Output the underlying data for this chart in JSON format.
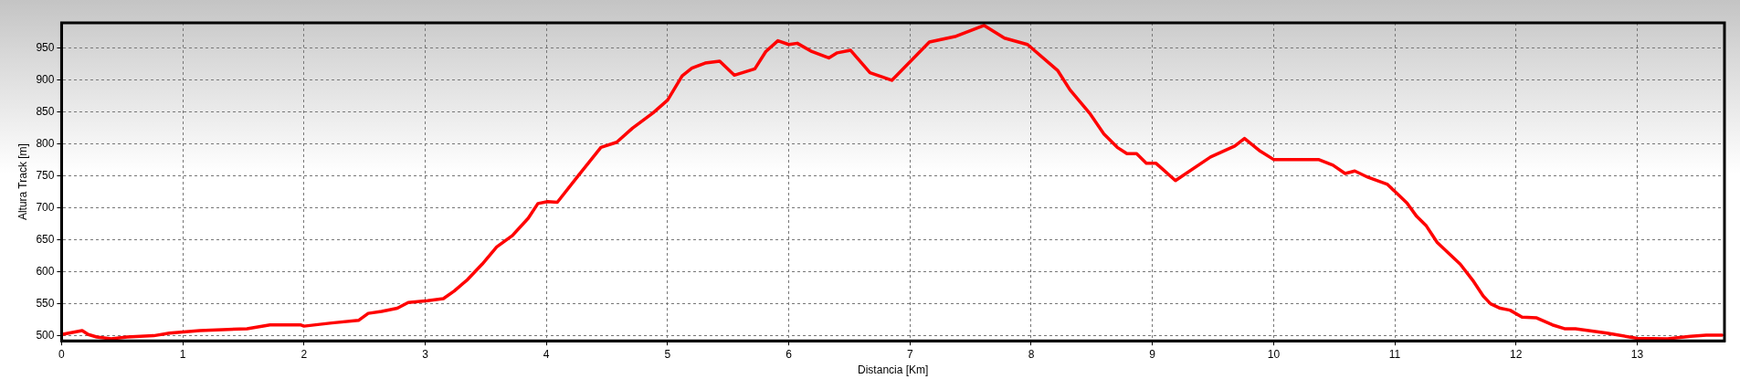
{
  "chart_data": {
    "type": "line",
    "xlabel": "Distancia [Km]",
    "ylabel": "Altura Track [m]",
    "xlim": [
      0,
      13.72
    ],
    "xticks": [
      0,
      1,
      2,
      3,
      4,
      5,
      6,
      7,
      8,
      9,
      10,
      11,
      12,
      13
    ],
    "ylim": [
      492,
      990
    ],
    "yticks": [
      500,
      550,
      600,
      650,
      700,
      750,
      800,
      850,
      900,
      950
    ],
    "grid": true,
    "legend": false,
    "marker": "none",
    "line_style": "solid",
    "series": [
      {
        "color": "#ff0000",
        "x": [
          0,
          0.17,
          0.22,
          0.29,
          0.41,
          0.54,
          0.76,
          0.89,
          1.14,
          1.53,
          1.72,
          1.97,
          2.0,
          2.23,
          2.45,
          2.53,
          2.64,
          2.77,
          2.86,
          3.02,
          3.15,
          3.24,
          3.35,
          3.47,
          3.59,
          3.72,
          3.85,
          3.93,
          4.01,
          4.09,
          4.26,
          4.45,
          4.58,
          4.71,
          4.88,
          5.0,
          5.12,
          5.2,
          5.31,
          5.43,
          5.55,
          5.72,
          5.81,
          5.91,
          6.0,
          6.07,
          6.19,
          6.33,
          6.4,
          6.51,
          6.67,
          6.85,
          7.16,
          7.38,
          7.61,
          7.78,
          7.97,
          8.22,
          8.32,
          8.48,
          8.6,
          8.71,
          8.79,
          8.87,
          8.95,
          9.03,
          9.19,
          9.48,
          9.68,
          9.76,
          9.89,
          10.0,
          10.37,
          10.49,
          10.59,
          10.67,
          10.78,
          10.94,
          11.1,
          11.18,
          11.26,
          11.35,
          11.54,
          11.65,
          11.73,
          11.79,
          11.87,
          11.95,
          12.05,
          12.17,
          12.3,
          12.4,
          12.49,
          12.75,
          13.0,
          13.25,
          13.44,
          13.57,
          13.7
        ],
        "values": [
          502,
          508,
          502,
          498,
          495,
          498,
          500,
          504,
          508,
          511,
          517,
          517,
          515,
          520,
          524,
          535,
          538,
          543,
          552,
          555,
          558,
          570,
          588,
          612,
          639,
          657,
          684,
          707,
          710,
          709,
          750,
          795,
          803,
          825,
          849,
          869,
          907,
          919,
          927,
          930,
          908,
          918,
          945,
          962,
          956,
          958,
          945,
          935,
          943,
          947,
          912,
          900,
          960,
          969,
          986,
          966,
          956,
          915,
          885,
          849,
          816,
          795,
          785,
          785,
          770,
          770,
          743,
          780,
          797,
          809,
          789,
          776,
          776,
          767,
          754,
          758,
          748,
          737,
          708,
          687,
          672,
          646,
          612,
          585,
          562,
          550,
          543,
          540,
          529,
          528,
          517,
          511,
          511,
          504,
          496,
          495,
          499,
          501,
          501
        ]
      }
    ]
  }
}
